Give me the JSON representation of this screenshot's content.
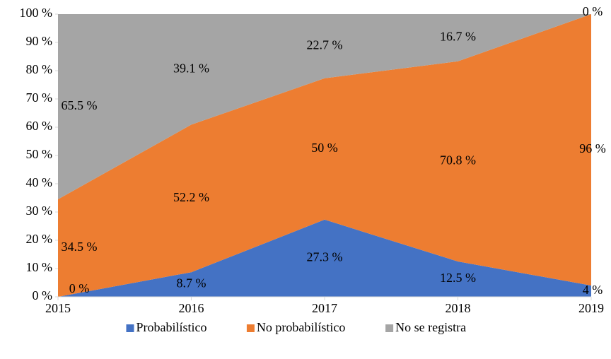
{
  "chart_data": {
    "type": "stacked_area",
    "categories": [
      "2015",
      "2016",
      "2017",
      "2018",
      "2019"
    ],
    "series": [
      {
        "name": "Probabilístico",
        "color": "#4472c4",
        "values": [
          0,
          8.7,
          27.3,
          12.5,
          4
        ],
        "value_labels": [
          "0 %",
          "8.7 %",
          "27.3 %",
          "12.5 %",
          "4 %"
        ]
      },
      {
        "name": "No probabilístico",
        "color": "#ed7d31",
        "values": [
          34.5,
          52.2,
          50,
          70.8,
          96
        ],
        "value_labels": [
          "34.5 %",
          "52.2 %",
          "50 %",
          "70.8 %",
          "96 %"
        ]
      },
      {
        "name": "No se registra",
        "color": "#a5a5a5",
        "values": [
          65.5,
          39.1,
          22.7,
          16.7,
          0
        ],
        "value_labels": [
          "65.5 %",
          "39.1 %",
          "22.7 %",
          "16.7 %",
          "0 %"
        ]
      }
    ],
    "ylim": [
      0,
      100
    ],
    "yticks": [
      {
        "value": 0,
        "label": "0 %"
      },
      {
        "value": 10,
        "label": "10 %"
      },
      {
        "value": 20,
        "label": "20 %"
      },
      {
        "value": 30,
        "label": "30 %"
      },
      {
        "value": 40,
        "label": "40 %"
      },
      {
        "value": 50,
        "label": "50 %"
      },
      {
        "value": 60,
        "label": "60 %"
      },
      {
        "value": 70,
        "label": "70 %"
      },
      {
        "value": 80,
        "label": "80 %"
      },
      {
        "value": 90,
        "label": "90 %"
      },
      {
        "value": 100,
        "label": "100 %"
      }
    ],
    "legend": "bottom"
  }
}
